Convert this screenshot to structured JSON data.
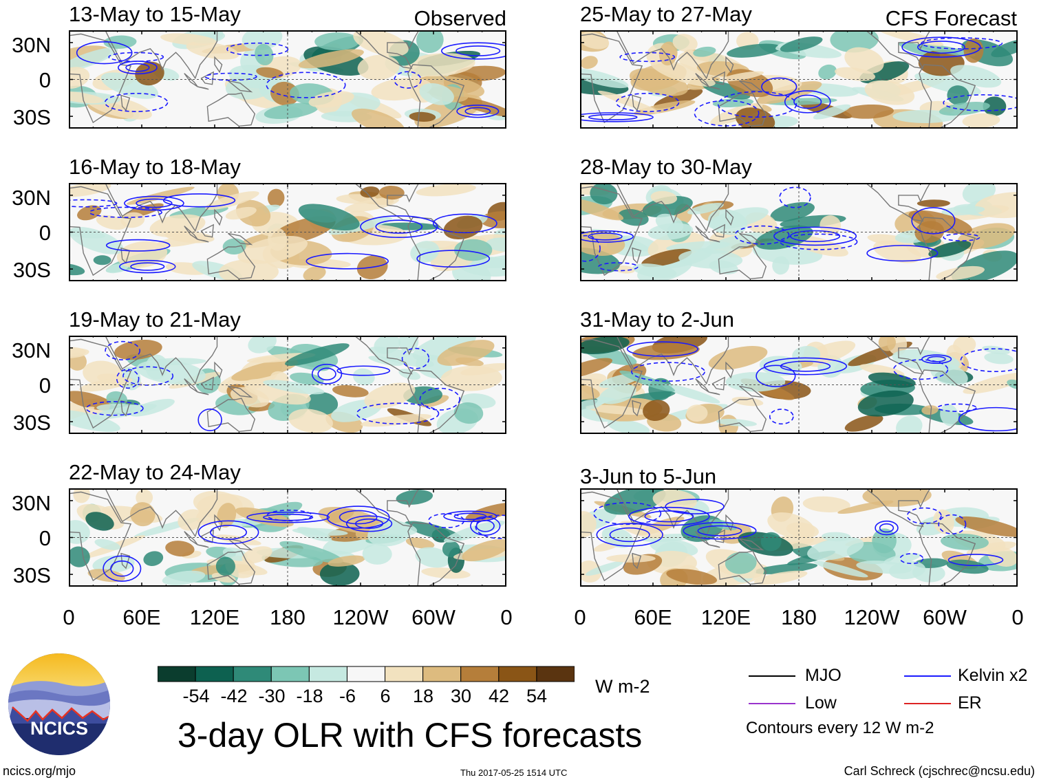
{
  "chart_data": {
    "type": "heatmap",
    "title": "3-day OLR with CFS forecasts",
    "units": "W m-2",
    "lat_range": [
      -40,
      40
    ],
    "lon_range": [
      0,
      360
    ],
    "lat_tick_labels": [
      "30N",
      "0",
      "30S"
    ],
    "lon_tick_labels": [
      "0",
      "60E",
      "120E",
      "180",
      "120W",
      "60W",
      "0"
    ],
    "columns": [
      {
        "label": "Observed",
        "panels": [
          "13-May to 15-May",
          "16-May to 18-May",
          "19-May to 21-May",
          "22-May to 24-May"
        ]
      },
      {
        "label": "CFS Forecast",
        "panels": [
          "25-May to 27-May",
          "28-May to 30-May",
          "31-May to 2-Jun",
          "3-Jun to 5-Jun"
        ]
      }
    ],
    "colorbar": {
      "labels": [
        "-54",
        "-42",
        "-30",
        "-18",
        "-6",
        "6",
        "18",
        "30",
        "42",
        "54"
      ],
      "colors": [
        "#0b3d2e",
        "#0d6150",
        "#2f8a78",
        "#7cc6b4",
        "#c6e9e1",
        "#f7f7f7",
        "#f2e2bf",
        "#ddbb7f",
        "#b57e3a",
        "#8a5516",
        "#5a3410"
      ]
    },
    "contour_legend": [
      {
        "name": "MJO",
        "color": "#000000"
      },
      {
        "name": "Kelvin x2",
        "color": "#1a1aff"
      },
      {
        "name": "Low",
        "color": "#9933cc"
      },
      {
        "name": "ER",
        "color": "#dd2222"
      }
    ],
    "contour_note": "Contours every 12 W m-2"
  },
  "logo": {
    "text": "NCICS"
  },
  "footer": {
    "url": "ncics.org/mjo",
    "timestamp": "Thu 2017-05-25 1514 UTC",
    "author": "Carl Schreck (cjschrec@ncsu.edu)"
  }
}
